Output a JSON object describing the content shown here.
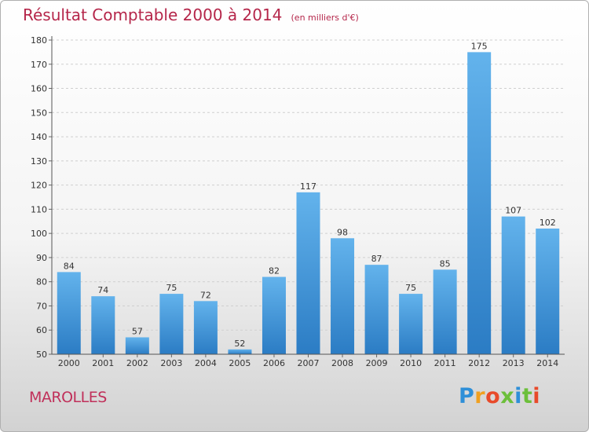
{
  "header": {
    "title": "Résultat Comptable 2000 à 2014",
    "unit": "(en milliers d'€)"
  },
  "footer": {
    "city": "MAROLLES",
    "logo": "Proxiti"
  },
  "colors": {
    "bar_light": "#63b3ec",
    "bar_dark": "#2b7cc4",
    "title": "#b5264a"
  },
  "chart_data": {
    "type": "bar",
    "title": "Résultat Comptable 2000 à 2014",
    "subtitle": "(en milliers d'€)",
    "xlabel": "",
    "ylabel": "",
    "categories": [
      "2000",
      "2001",
      "2002",
      "2003",
      "2004",
      "2005",
      "2006",
      "2007",
      "2008",
      "2009",
      "2010",
      "2011",
      "2012",
      "2013",
      "2014"
    ],
    "values": [
      84,
      74,
      57,
      75,
      72,
      52,
      82,
      117,
      98,
      87,
      75,
      85,
      175,
      107,
      102
    ],
    "ylim": [
      50,
      180
    ],
    "yticks": [
      50,
      60,
      70,
      80,
      90,
      100,
      110,
      120,
      130,
      140,
      150,
      160,
      170,
      180
    ],
    "grid": true,
    "data_labels": true
  }
}
